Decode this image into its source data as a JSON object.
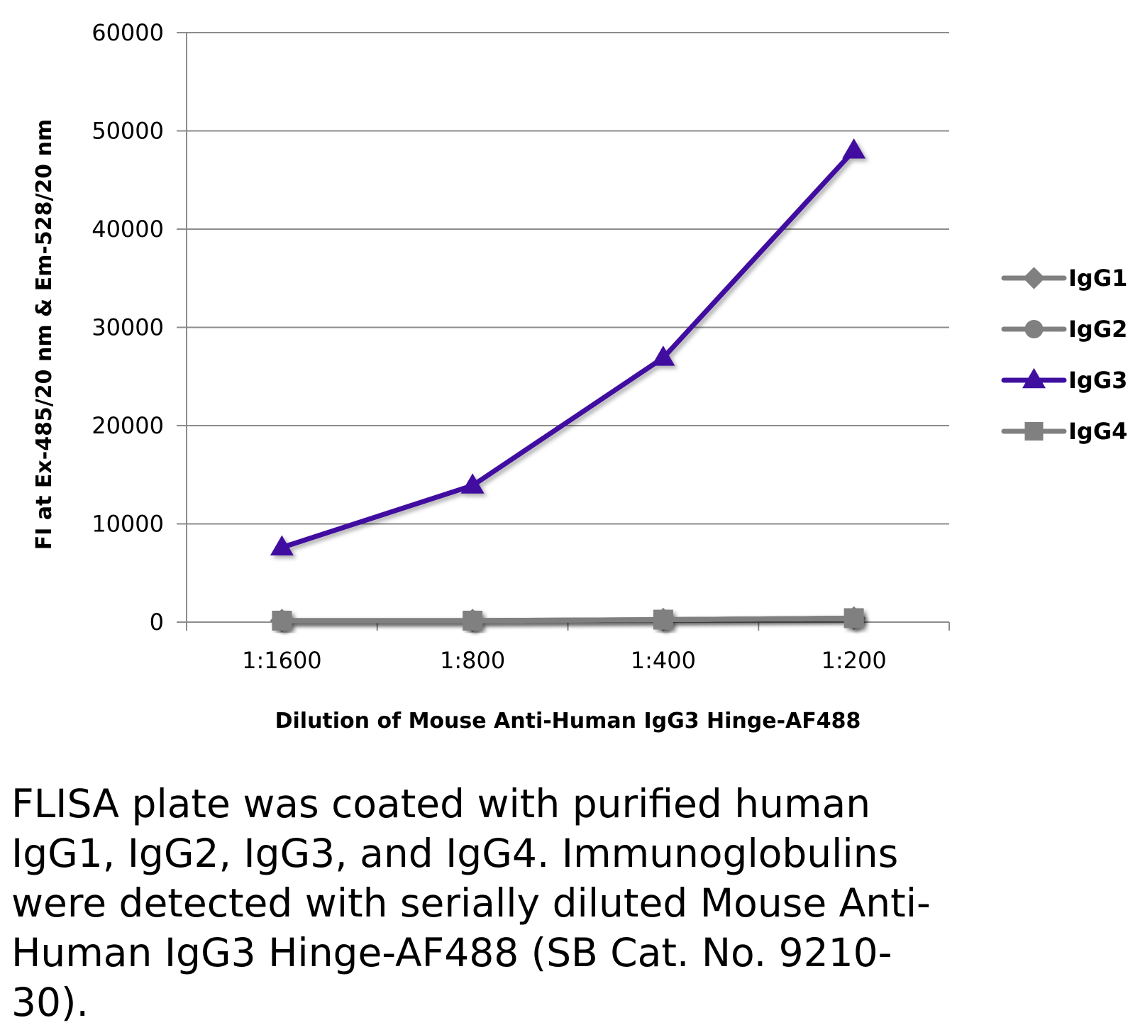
{
  "chart_data": {
    "type": "line",
    "categories": [
      "1:1600",
      "1:800",
      "1:400",
      "1:200"
    ],
    "series": [
      {
        "name": "IgG1",
        "values": [
          150,
          150,
          250,
          400
        ],
        "color": "#808080",
        "marker": "diamond"
      },
      {
        "name": "IgG2",
        "values": [
          150,
          150,
          250,
          400
        ],
        "color": "#808080",
        "marker": "circle"
      },
      {
        "name": "IgG3",
        "values": [
          7600,
          13900,
          26900,
          48000
        ],
        "color": "#3f0fa0",
        "marker": "triangle"
      },
      {
        "name": "IgG4",
        "values": [
          150,
          150,
          250,
          400
        ],
        "color": "#808080",
        "marker": "square"
      }
    ],
    "xlabel": "Dilution of Mouse Anti-Human IgG3 Hinge-AF488",
    "ylabel": "FI at Ex-485/20 nm & Em-528/20 nm",
    "ylim": [
      0,
      60000
    ],
    "yticks": [
      0,
      10000,
      20000,
      30000,
      40000,
      50000,
      60000
    ],
    "grid": true,
    "legend": "right"
  },
  "caption": "FLISA plate was coated with purified human IgG1, IgG2, IgG3, and IgG4.  Immunoglobulins were detected with serially diluted Mouse Anti-Human IgG3 Hinge-AF488 (SB Cat. No. 9210-30)."
}
